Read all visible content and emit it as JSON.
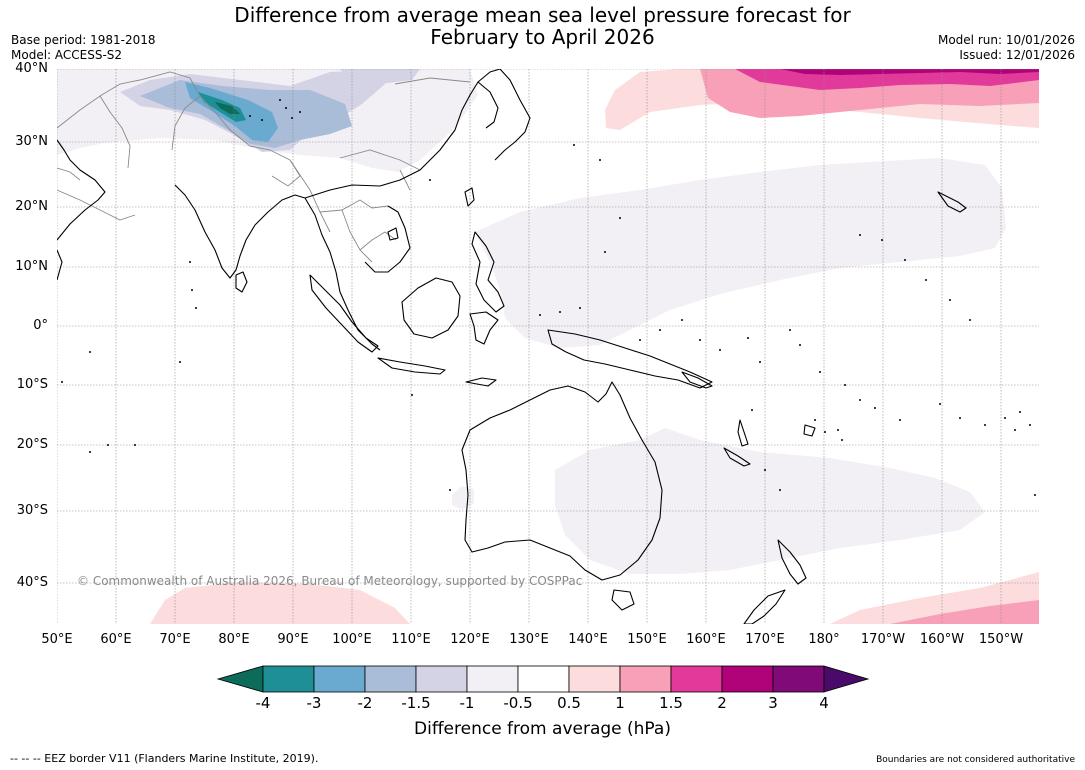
{
  "title": {
    "line1": "Difference from average mean sea level pressure forecast for",
    "line2": "February to April 2026"
  },
  "meta": {
    "base_period": "Base period: 1981-2018",
    "model": "Model: ACCESS-S2",
    "model_run": "Model run: 10/01/2026",
    "issued": "Issued: 12/01/2026"
  },
  "map": {
    "lat_labels": [
      "40°N",
      "30°N",
      "20°N",
      "10°N",
      "0°",
      "10°S",
      "20°S",
      "30°S",
      "40°S"
    ],
    "lon_labels": [
      "50°E",
      "60°E",
      "70°E",
      "80°E",
      "90°E",
      "100°E",
      "110°E",
      "120°E",
      "130°E",
      "140°E",
      "150°E",
      "160°E",
      "170°E",
      "180°",
      "170°W",
      "160°W",
      "150°W"
    ],
    "copyright": "© Commonwealth of Australia 2026, Bureau of Meteorology, supported by COSPPac"
  },
  "colorbar": {
    "ticks": [
      "-4",
      "-3",
      "-2",
      "-1.5",
      "-1",
      "-0.5",
      "0.5",
      "1",
      "1.5",
      "2",
      "3",
      "4"
    ],
    "colors": {
      "lt_neg4": "#0d6b5a",
      "neg4_neg3": "#1e8f96",
      "neg3_neg2": "#6aa9d0",
      "neg2_neg15": "#a9bcd8",
      "neg15_neg1": "#d3d3e5",
      "neg1_neg05": "#f2eff5",
      "neg05_05": "#ffffff",
      "p05_1": "#fcdcdc",
      "p1_15": "#f8a0b8",
      "p15_2": "#e23a9a",
      "p2_3": "#b0037a",
      "p3_4": "#7f0a78",
      "gt_4": "#4a0a6a"
    },
    "label": "Difference from average (hPa)"
  },
  "footer": {
    "eez": "--  --  -- EEZ border V11 (Flanders Marine Institute, 2019).",
    "boundaries": "Boundaries are not considered authoritative"
  }
}
